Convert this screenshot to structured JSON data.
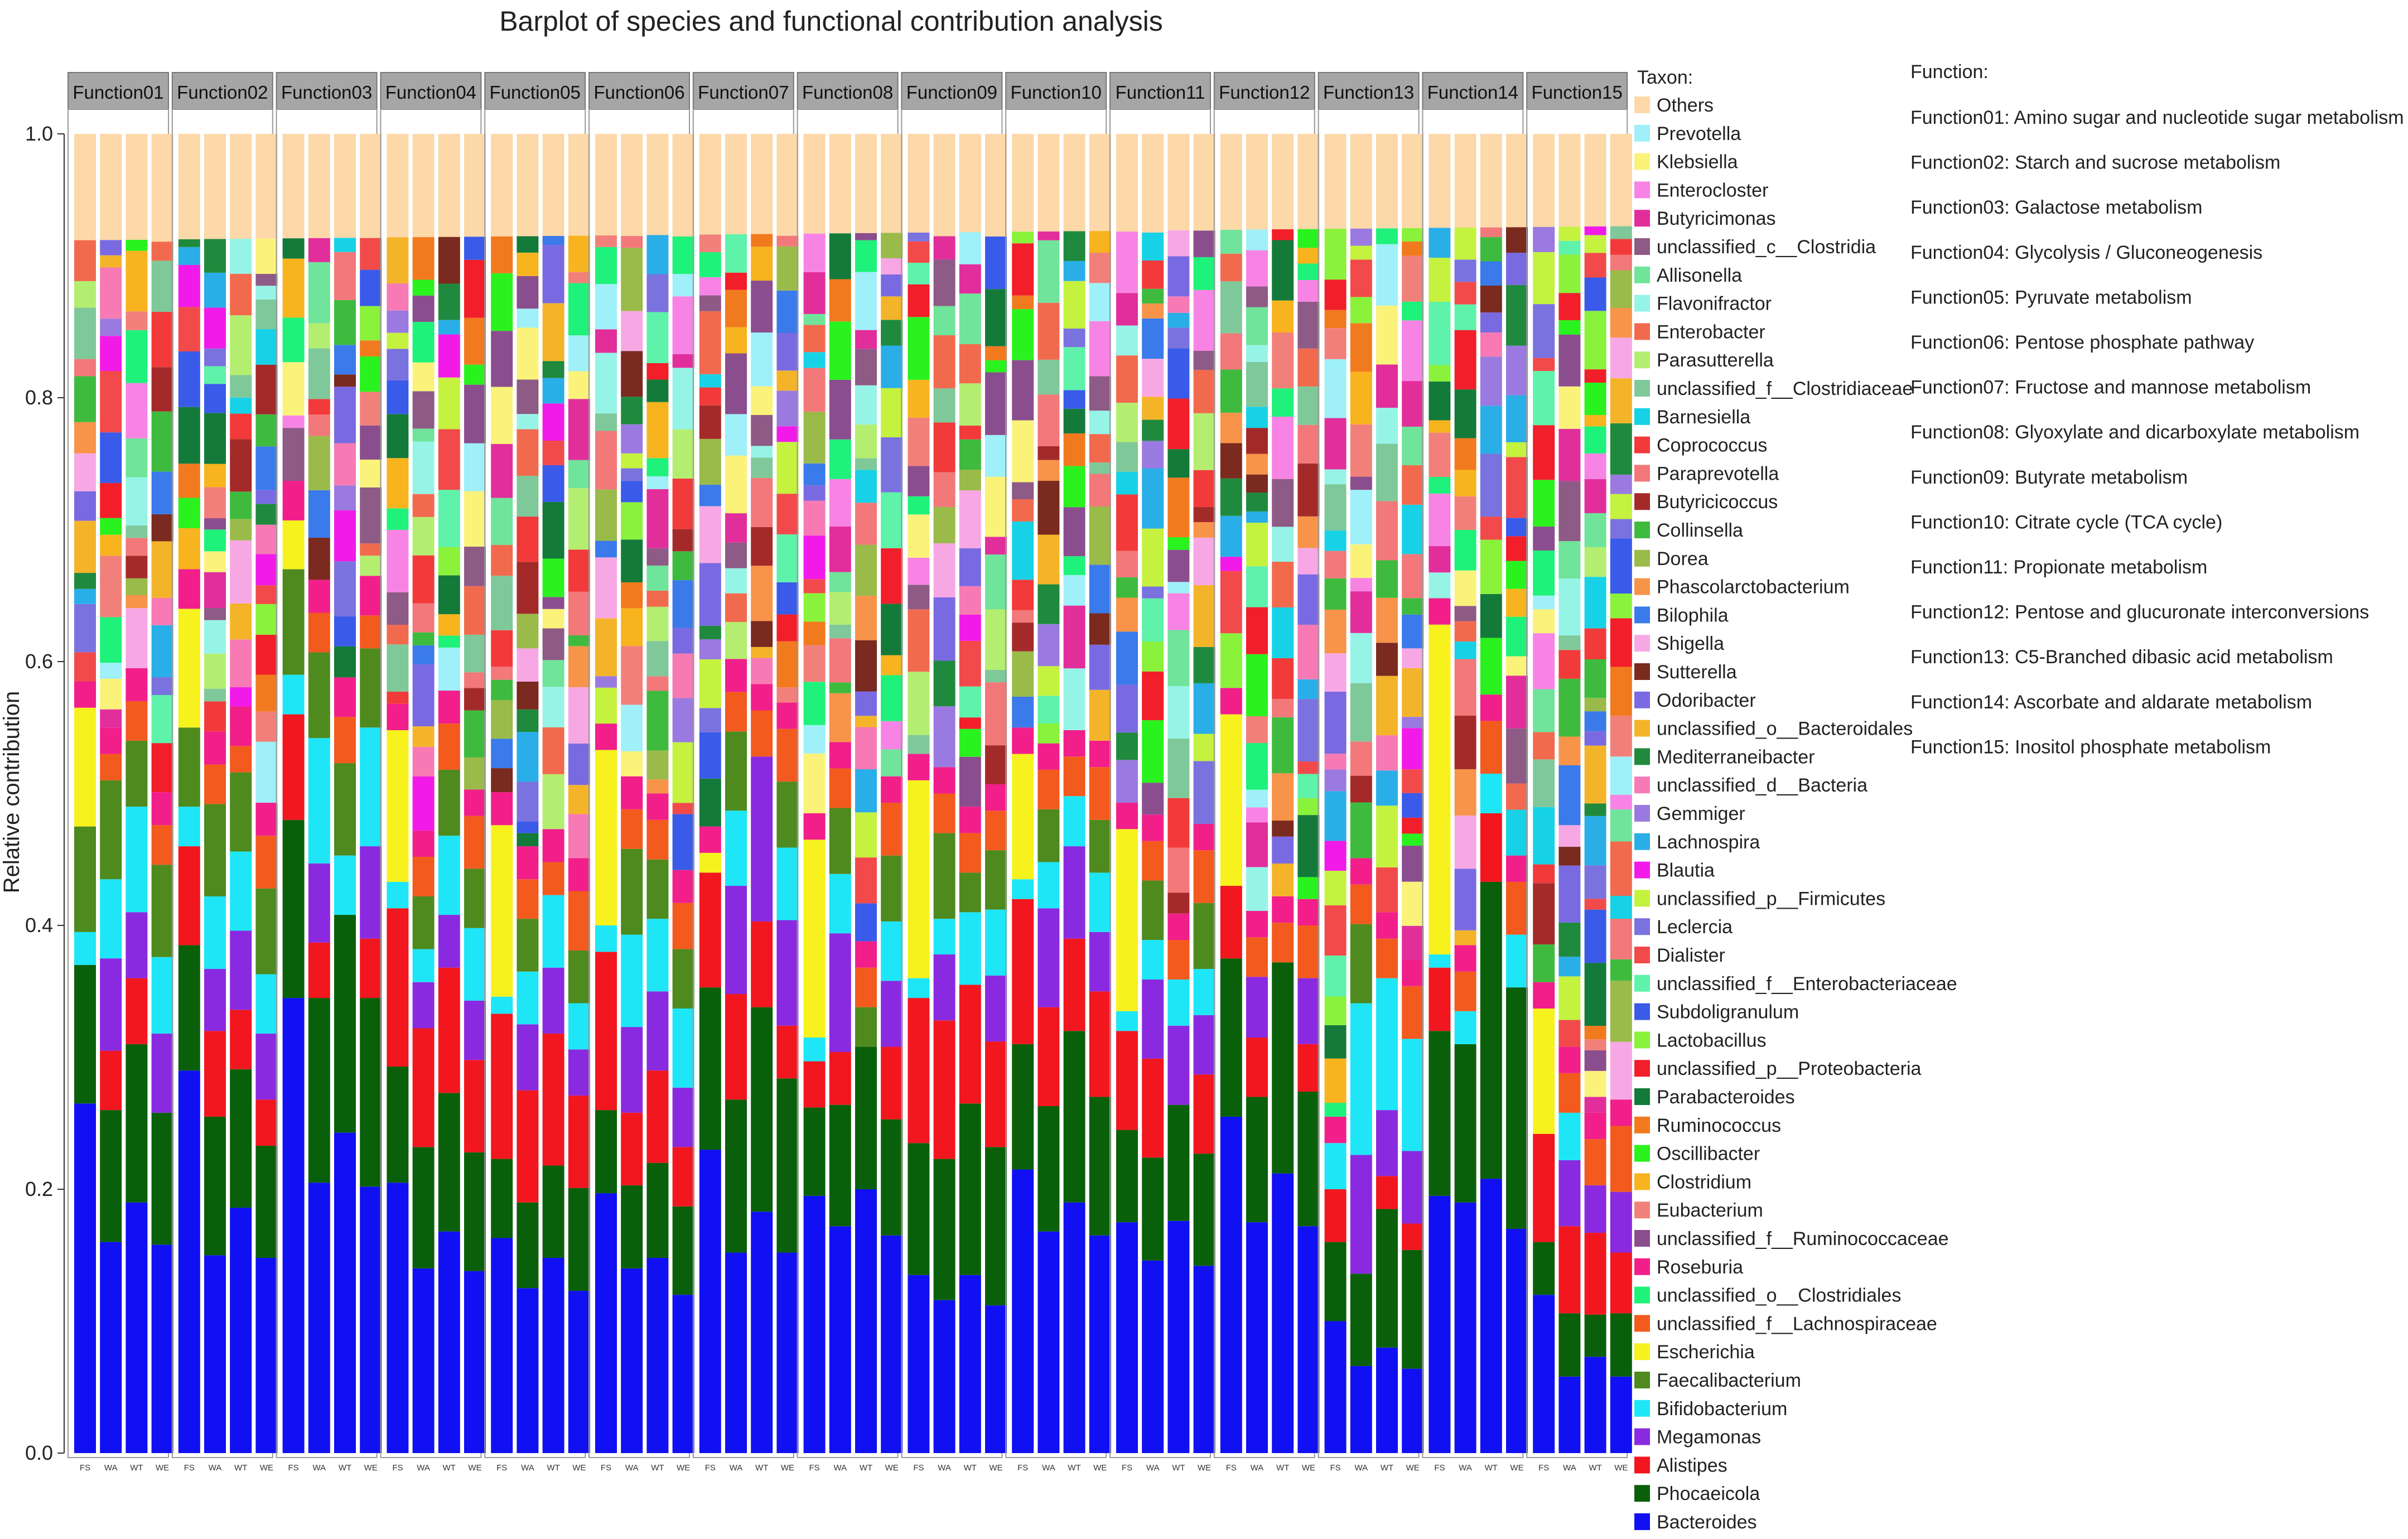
{
  "chart_data": {
    "type": "bar",
    "stacked": true,
    "title": "Barplot of species and functional contribution analysis",
    "ylabel": "Relative contribution",
    "xlabel": "",
    "ylim": [
      0,
      1.0
    ],
    "yticks": [
      "0.0",
      "0.2",
      "0.4",
      "0.6",
      "0.8",
      "1.0"
    ],
    "panels": [
      "Function01",
      "Function02",
      "Function03",
      "Function04",
      "Function05",
      "Function06",
      "Function07",
      "Function08",
      "Function09",
      "Function10",
      "Function11",
      "Function12",
      "Function13",
      "Function14",
      "Function15"
    ],
    "samples": [
      "FS",
      "WA",
      "WT",
      "WE"
    ],
    "legend_title": "Taxon:",
    "taxa": [
      {
        "name": "Others",
        "color": "#FDD8A8"
      },
      {
        "name": "Prevotella",
        "color": "#9FF0F8"
      },
      {
        "name": "Klebsiella",
        "color": "#FBF27A"
      },
      {
        "name": "Enterocloster",
        "color": "#F784E4"
      },
      {
        "name": "Butyricimonas",
        "color": "#E22E9B"
      },
      {
        "name": "unclassified_c__Clostridia",
        "color": "#8E5A86"
      },
      {
        "name": "Allisonella",
        "color": "#6FE49A"
      },
      {
        "name": "Flavonifractor",
        "color": "#96F4E6"
      },
      {
        "name": "Enterobacter",
        "color": "#F26A4E"
      },
      {
        "name": "Parasutterella",
        "color": "#B4EE70"
      },
      {
        "name": "unclassified_f__Clostridiaceae",
        "color": "#7FC89A"
      },
      {
        "name": "Barnesiella",
        "color": "#17D2E6"
      },
      {
        "name": "Coprococcus",
        "color": "#F23A3A"
      },
      {
        "name": "Paraprevotella",
        "color": "#F2787A"
      },
      {
        "name": "Butyricicoccus",
        "color": "#A42A2A"
      },
      {
        "name": "Collinsella",
        "color": "#3EBB3E"
      },
      {
        "name": "Dorea",
        "color": "#9ABA4A"
      },
      {
        "name": "Phascolarctobacterium",
        "color": "#F7944A"
      },
      {
        "name": "Bilophila",
        "color": "#3A7AEA"
      },
      {
        "name": "Shigella",
        "color": "#F7A8E4"
      },
      {
        "name": "Sutterella",
        "color": "#7A2A1E"
      },
      {
        "name": "Odoribacter",
        "color": "#7A6AE2"
      },
      {
        "name": "unclassified_o__Bacteroidales",
        "color": "#F4B42A"
      },
      {
        "name": "Mediterraneibacter",
        "color": "#1F8A3E"
      },
      {
        "name": "unclassified_d__Bacteria",
        "color": "#F77AB4"
      },
      {
        "name": "Gemmiger",
        "color": "#9A7AE0"
      },
      {
        "name": "Lachnospira",
        "color": "#2AAEE8"
      },
      {
        "name": "Blautia",
        "color": "#F21AE8"
      },
      {
        "name": "unclassified_p__Firmicutes",
        "color": "#C4F23E"
      },
      {
        "name": "Leclercia",
        "color": "#7A72DE"
      },
      {
        "name": "Dialister",
        "color": "#F24A4A"
      },
      {
        "name": "unclassified_f__Enterobacteriaceae",
        "color": "#5EF2AA"
      },
      {
        "name": "Subdoligranulum",
        "color": "#3A5AEA"
      },
      {
        "name": "Lactobacillus",
        "color": "#8AF23A"
      },
      {
        "name": "unclassified_p__Proteobacteria",
        "color": "#F21E2A"
      },
      {
        "name": "Parabacteroides",
        "color": "#137A3A"
      },
      {
        "name": "Ruminococcus",
        "color": "#F27A1E"
      },
      {
        "name": "Oscillibacter",
        "color": "#2AF21E"
      },
      {
        "name": "Clostridium",
        "color": "#F7B41E"
      },
      {
        "name": "Eubacterium",
        "color": "#F2807A"
      },
      {
        "name": "unclassified_f__Ruminococcaceae",
        "color": "#8A4E8E"
      },
      {
        "name": "Roseburia",
        "color": "#F21E8A"
      },
      {
        "name": "unclassified_o__Clostridiales",
        "color": "#1EF27A"
      },
      {
        "name": "unclassified_f__Lachnospiraceae",
        "color": "#F25A1E"
      },
      {
        "name": "Escherichia",
        "color": "#F7F21E"
      },
      {
        "name": "Faecalibacterium",
        "color": "#4E8A1E"
      },
      {
        "name": "Bifidobacterium",
        "color": "#1EE6F7"
      },
      {
        "name": "Megamonas",
        "color": "#8A2AE0"
      },
      {
        "name": "Alistipes",
        "color": "#F2161E"
      },
      {
        "name": "Phocaeicola",
        "color": "#0A600A"
      },
      {
        "name": "Bacteroides",
        "color": "#1010F2"
      }
    ],
    "major_series": {
      "Bacteroides": [
        [
          0.265,
          0.16,
          0.19,
          0.158
        ],
        [
          0.29,
          0.15,
          0.186,
          0.148
        ],
        [
          0.345,
          0.205,
          0.243,
          0.202
        ],
        [
          0.205,
          0.14,
          0.168,
          0.138
        ],
        [
          0.163,
          0.125,
          0.148,
          0.123
        ],
        [
          0.197,
          0.14,
          0.148,
          0.12
        ],
        [
          0.23,
          0.152,
          0.183,
          0.152
        ],
        [
          0.195,
          0.172,
          0.2,
          0.165
        ],
        [
          0.135,
          0.116,
          0.135,
          0.112
        ],
        [
          0.215,
          0.168,
          0.19,
          0.165
        ],
        [
          0.175,
          0.146,
          0.176,
          0.142
        ],
        [
          0.255,
          0.175,
          0.212,
          0.172
        ],
        [
          0.1,
          0.066,
          0.08,
          0.064
        ],
        [
          0.195,
          0.19,
          0.208,
          0.17
        ],
        [
          0.12,
          0.058,
          0.073,
          0.058
        ]
      ],
      "Phocaeicola": [
        [
          0.105,
          0.1,
          0.12,
          0.1
        ],
        [
          0.095,
          0.105,
          0.105,
          0.085
        ],
        [
          0.135,
          0.14,
          0.165,
          0.143
        ],
        [
          0.088,
          0.092,
          0.105,
          0.09
        ],
        [
          0.06,
          0.065,
          0.07,
          0.078
        ],
        [
          0.063,
          0.063,
          0.072,
          0.067
        ],
        [
          0.123,
          0.116,
          0.155,
          0.132
        ],
        [
          0.067,
          0.092,
          0.108,
          0.088
        ],
        [
          0.1,
          0.107,
          0.13,
          0.12
        ],
        [
          0.095,
          0.095,
          0.13,
          0.105
        ],
        [
          0.07,
          0.078,
          0.088,
          0.085
        ],
        [
          0.12,
          0.095,
          0.16,
          0.102
        ],
        [
          0.06,
          0.07,
          0.105,
          0.09
        ],
        [
          0.125,
          0.12,
          0.225,
          0.183
        ],
        [
          0.04,
          0.048,
          0.032,
          0.048
        ]
      ],
      "Alistipes": [
        [
          0.0,
          0.045,
          0.05,
          0.0
        ],
        [
          0.075,
          0.065,
          0.045,
          0.035
        ],
        [
          0.08,
          0.042,
          0.0,
          0.045
        ],
        [
          0.12,
          0.09,
          0.095,
          0.07
        ],
        [
          0.11,
          0.085,
          0.1,
          0.07
        ],
        [
          0.12,
          0.055,
          0.07,
          0.045
        ],
        [
          0.087,
          0.08,
          0.065,
          0.04
        ],
        [
          0.035,
          0.04,
          0.0,
          0.055
        ],
        [
          0.11,
          0.105,
          0.09,
          0.08
        ],
        [
          0.11,
          0.075,
          0.07,
          0.08
        ],
        [
          0.075,
          0.075,
          0.0,
          0.06
        ],
        [
          0.055,
          0.045,
          0.0,
          0.036
        ],
        [
          0.04,
          0.0,
          0.025,
          0.02
        ],
        [
          0.048,
          0.0,
          0.052,
          0.0
        ],
        [
          0.082,
          0.066,
          0.062,
          0.046
        ]
      ],
      "Megamonas": [
        [
          0.0,
          0.07,
          0.05,
          0.06
        ],
        [
          0.0,
          0.047,
          0.06,
          0.05
        ],
        [
          0.0,
          0.06,
          0.0,
          0.07
        ],
        [
          0.0,
          0.035,
          0.04,
          0.045
        ],
        [
          0.0,
          0.05,
          0.05,
          0.035
        ],
        [
          0.0,
          0.065,
          0.06,
          0.045
        ],
        [
          0.0,
          0.082,
          0.125,
          0.08
        ],
        [
          0.0,
          0.09,
          0.0,
          0.05
        ],
        [
          0.0,
          0.05,
          0.0,
          0.05
        ],
        [
          0.0,
          0.075,
          0.07,
          0.045
        ],
        [
          0.0,
          0.06,
          0.06,
          0.045
        ],
        [
          0.0,
          0.046,
          0.0,
          0.05
        ],
        [
          0.0,
          0.09,
          0.05,
          0.055
        ],
        [
          0.0,
          0.0,
          0.0,
          0.0
        ],
        [
          0.0,
          0.05,
          0.036,
          0.046
        ]
      ],
      "Bifidobacterium": [
        [
          0.025,
          0.06,
          0.08,
          0.058
        ],
        [
          0.03,
          0.055,
          0.06,
          0.045
        ],
        [
          0.03,
          0.095,
          0.045,
          0.09
        ],
        [
          0.02,
          0.025,
          0.06,
          0.055
        ],
        [
          0.013,
          0.04,
          0.055,
          0.035
        ],
        [
          0.02,
          0.07,
          0.055,
          0.06
        ],
        [
          0.0,
          0.057,
          0.0,
          0.055
        ],
        [
          0.018,
          0.045,
          0.0,
          0.045
        ],
        [
          0.015,
          0.027,
          0.055,
          0.05
        ],
        [
          0.015,
          0.035,
          0.038,
          0.045
        ],
        [
          0.015,
          0.03,
          0.035,
          0.035
        ],
        [
          0.0,
          0.0,
          0.0,
          0.0
        ],
        [
          0.035,
          0.115,
          0.1,
          0.085
        ],
        [
          0.01,
          0.025,
          0.03,
          0.04
        ],
        [
          0.0,
          0.036,
          0.0,
          0.0
        ]
      ],
      "Faecalibacterium": [
        [
          0.08,
          0.075,
          0.05,
          0.07
        ],
        [
          0.06,
          0.07,
          0.06,
          0.065
        ],
        [
          0.08,
          0.065,
          0.07,
          0.06
        ],
        [
          0.0,
          0.04,
          0.05,
          0.045
        ],
        [
          0.0,
          0.04,
          0.0,
          0.04
        ],
        [
          0.0,
          0.065,
          0.045,
          0.045
        ],
        [
          0.0,
          0.06,
          0.0,
          0.05
        ],
        [
          0.0,
          0.05,
          0.03,
          0.05
        ],
        [
          0.0,
          0.065,
          0.03,
          0.045
        ],
        [
          0.0,
          0.04,
          0.0,
          0.04
        ],
        [
          0.0,
          0.045,
          0.0,
          0.05
        ],
        [
          0.0,
          0.0,
          0.0,
          0.0
        ],
        [
          0.0,
          0.06,
          0.0,
          0.0
        ],
        [
          0.0,
          0.0,
          0.0,
          0.0
        ],
        [
          0.0,
          0.0,
          0.0,
          0.0
        ]
      ],
      "Escherichia": [
        [
          0.09,
          0.0,
          0.0,
          0.0
        ],
        [
          0.09,
          0.0,
          0.0,
          0.0
        ],
        [
          0.037,
          0.0,
          0.0,
          0.0
        ],
        [
          0.115,
          0.0,
          0.0,
          0.0
        ],
        [
          0.13,
          0.0,
          0.0,
          0.0
        ],
        [
          0.133,
          0.0,
          0.0,
          0.0
        ],
        [
          0.015,
          0.0,
          0.0,
          0.0
        ],
        [
          0.15,
          0.0,
          0.0,
          0.0
        ],
        [
          0.15,
          0.0,
          0.0,
          0.0
        ],
        [
          0.095,
          0.0,
          0.0,
          0.0
        ],
        [
          0.138,
          0.0,
          0.0,
          0.0
        ],
        [
          0.13,
          0.0,
          0.0,
          0.0
        ],
        [
          0.0,
          0.0,
          0.0,
          0.0
        ],
        [
          0.25,
          0.0,
          0.0,
          0.0
        ],
        [
          0.095,
          0.0,
          0.0,
          0.0
        ]
      ],
      "unclassified_f__Lachnospiraceae": [
        [
          0.0,
          0.02,
          0.03,
          0.03
        ],
        [
          0.0,
          0.03,
          0.02,
          0.04
        ],
        [
          0.0,
          0.03,
          0.035,
          0.025
        ],
        [
          0.0,
          0.03,
          0.035,
          0.04
        ],
        [
          0.0,
          0.03,
          0.025,
          0.045
        ],
        [
          0.0,
          0.03,
          0.03,
          0.035
        ],
        [
          0.0,
          0.03,
          0.035,
          0.04
        ],
        [
          0.0,
          0.03,
          0.03,
          0.04
        ],
        [
          0.0,
          0.03,
          0.03,
          0.03
        ],
        [
          0.0,
          0.03,
          0.03,
          0.04
        ],
        [
          0.0,
          0.03,
          0.03,
          0.04
        ],
        [
          0.0,
          0.03,
          0.03,
          0.04
        ],
        [
          0.0,
          0.03,
          0.03,
          0.04
        ],
        [
          0.0,
          0.03,
          0.04,
          0.04
        ],
        [
          0.0,
          0.03,
          0.035,
          0.05
        ]
      ],
      "Roseburia": [
        [
          0.02,
          0.02,
          0.025,
          0.025
        ],
        [
          0.03,
          0.025,
          0.03,
          0.025
        ],
        [
          0.03,
          0.025,
          0.03,
          0.03
        ],
        [
          0.02,
          0.02,
          0.025,
          0.02
        ],
        [
          0.025,
          0.025,
          0.025,
          0.025
        ],
        [
          0.02,
          0.025,
          0.02,
          0.025
        ],
        [
          0.02,
          0.025,
          0.02,
          0.02
        ],
        [
          0.02,
          0.02,
          0.02,
          0.02
        ],
        [
          0.02,
          0.02,
          0.02,
          0.02
        ],
        [
          0.02,
          0.02,
          0.02,
          0.02
        ],
        [
          0.02,
          0.02,
          0.02,
          0.02
        ],
        [
          0.02,
          0.02,
          0.02,
          0.02
        ],
        [
          0.02,
          0.02,
          0.02,
          0.02
        ],
        [
          0.02,
          0.02,
          0.02,
          0.02
        ],
        [
          0.02,
          0.02,
          0.02,
          0.02
        ]
      ]
    },
    "function_legend_title": "Function:",
    "functions": [
      "Function01: Amino sugar and nucleotide sugar metabolism",
      "Function02: Starch and sucrose metabolism",
      "Function03: Galactose metabolism",
      "Function04: Glycolysis / Gluconeogenesis",
      "Function05: Pyruvate metabolism",
      "Function06: Pentose phosphate pathway",
      "Function07: Fructose and mannose metabolism",
      "Function08: Glyoxylate and dicarboxylate metabolism",
      "Function09: Butyrate metabolism",
      "Function10: Citrate cycle (TCA cycle)",
      "Function11: Propionate metabolism",
      "Function12: Pentose and glucuronate interconversions",
      "Function13: C5-Branched dibasic acid metabolism",
      "Function14: Ascorbate and aldarate metabolism",
      "Function15: Inositol phosphate metabolism"
    ]
  }
}
